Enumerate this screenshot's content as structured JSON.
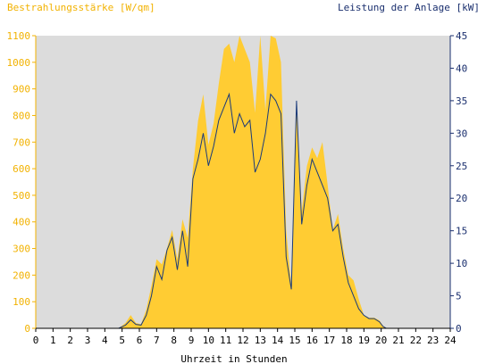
{
  "chart_data": {
    "type": "area",
    "left_axis_title": "Bestrahlungsstärke [W/qm]",
    "right_axis_title": "Leistung der Anlage [kW]",
    "xlabel": "Uhrzeit in Stunden",
    "xlim": [
      0,
      24
    ],
    "ylim_left": [
      0,
      1100
    ],
    "ylim_right": [
      0,
      45
    ],
    "x_ticks": [
      "0",
      "1",
      "2",
      "3",
      "4",
      "5",
      "6",
      "7",
      "8",
      "9",
      "10",
      "11",
      "12",
      "13",
      "14",
      "15",
      "16",
      "17",
      "18",
      "19",
      "20",
      "21",
      "22",
      "23",
      "24"
    ],
    "y_left_ticks": [
      "0",
      "100",
      "200",
      "300",
      "400",
      "500",
      "600",
      "700",
      "800",
      "900",
      "1000",
      "1100"
    ],
    "y_right_ticks": [
      "0",
      "5",
      "10",
      "15",
      "20",
      "25",
      "30",
      "35",
      "40",
      "45"
    ],
    "grid": false,
    "colors": {
      "irradiance_fill": "#ffcc33",
      "power_line": "#1a3a7a",
      "left_axis_text": "#f2b200",
      "right_axis_text": "#1a2f6e",
      "plot_background": "#dcdcdc",
      "axis_tick_text": "#000000"
    },
    "series": [
      {
        "axis": "left",
        "style": "filled-area",
        "x": [
          0,
          4.8,
          5.2,
          5.5,
          5.8,
          6.1,
          6.4,
          6.7,
          7.0,
          7.3,
          7.6,
          7.9,
          8.2,
          8.5,
          8.8,
          9.1,
          9.4,
          9.7,
          10.0,
          10.3,
          10.6,
          10.9,
          11.2,
          11.5,
          11.8,
          12.1,
          12.4,
          12.7,
          13.0,
          13.3,
          13.6,
          13.9,
          14.2,
          14.5,
          14.8,
          15.1,
          15.4,
          15.7,
          16.0,
          16.3,
          16.6,
          16.9,
          17.2,
          17.5,
          17.8,
          18.1,
          18.4,
          18.7,
          19.0,
          19.3,
          19.6,
          19.9,
          20.1,
          20.3,
          24
        ],
        "y": [
          0,
          0,
          20,
          50,
          20,
          15,
          70,
          160,
          260,
          240,
          300,
          370,
          260,
          410,
          340,
          600,
          780,
          880,
          690,
          770,
          920,
          1050,
          1070,
          1000,
          1100,
          1050,
          1000,
          810,
          1100,
          820,
          1100,
          1090,
          1000,
          370,
          160,
          850,
          440,
          610,
          680,
          640,
          700,
          540,
          370,
          430,
          300,
          200,
          180,
          110,
          50,
          40,
          40,
          30,
          10,
          0,
          0
        ]
      },
      {
        "axis": "right",
        "style": "line",
        "x": [
          0,
          4.8,
          5.2,
          5.5,
          5.8,
          6.1,
          6.4,
          6.7,
          7.0,
          7.3,
          7.6,
          7.9,
          8.2,
          8.5,
          8.8,
          9.1,
          9.4,
          9.7,
          10.0,
          10.3,
          10.6,
          10.9,
          11.2,
          11.5,
          11.8,
          12.1,
          12.4,
          12.7,
          13.0,
          13.3,
          13.6,
          13.9,
          14.2,
          14.5,
          14.8,
          15.1,
          15.4,
          15.7,
          16.0,
          16.3,
          16.6,
          16.9,
          17.2,
          17.5,
          17.8,
          18.1,
          18.4,
          18.7,
          19.0,
          19.3,
          19.6,
          19.9,
          20.1,
          20.3,
          24
        ],
        "y": [
          0,
          0,
          0.5,
          1.3,
          0.6,
          0.5,
          2,
          5,
          9.5,
          7.5,
          12,
          14,
          9,
          15,
          9.5,
          23,
          26,
          30,
          25,
          28,
          32,
          34,
          36,
          30,
          33,
          31,
          32,
          24,
          26,
          30,
          36,
          35,
          33,
          11,
          6,
          35,
          16,
          22,
          26,
          24,
          22,
          20,
          15,
          16,
          11,
          7,
          5,
          3,
          2,
          1.5,
          1.5,
          1,
          0.3,
          0,
          0
        ]
      }
    ]
  }
}
